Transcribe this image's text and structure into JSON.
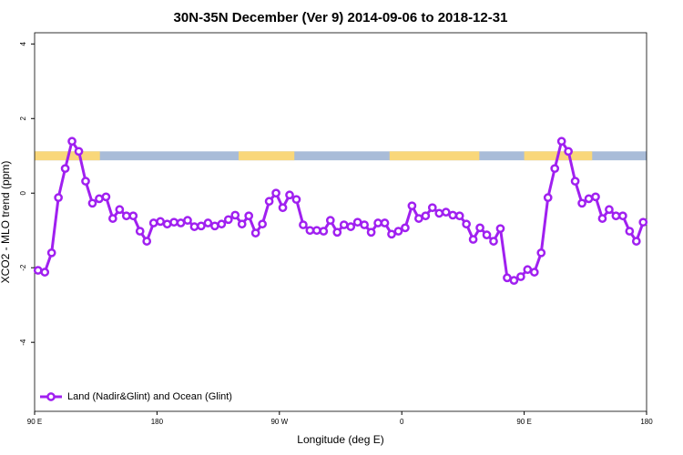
{
  "chart_data": {
    "type": "line",
    "title": "30N-35N December (Ver 9)   2014-09-06 to 2018-12-31",
    "x_label": "Longitude (deg E)",
    "y_label": "XCO2 - MLO trend (ppm)",
    "xlim": [
      90,
      540
    ],
    "xticks": [
      {
        "value": 90,
        "label": "90 E"
      },
      {
        "value": 180,
        "label": "180"
      },
      {
        "value": 270,
        "label": "90 W"
      },
      {
        "value": 360,
        "label": "0"
      },
      {
        "value": 450,
        "label": "90 E"
      },
      {
        "value": 540,
        "label": "180"
      }
    ],
    "ylim": [
      -5.85,
      4.3
    ],
    "yticks": [
      -4,
      -2,
      0,
      2,
      4
    ],
    "legend": "bottom-left",
    "surface_band": {
      "ylim": [
        0.88,
        1.12
      ],
      "ocean_color": "#a9bcd8",
      "land_color": "#f9d77a",
      "land": [
        [
          90,
          138
        ],
        [
          240,
          281
        ],
        [
          351,
          417
        ],
        [
          450,
          500
        ]
      ]
    },
    "series": [
      {
        "name": "Land (Nadir&Glint) and Ocean (Glint)",
        "color": "#a020f0",
        "x": [
          92.5,
          97.5,
          102.5,
          107.5,
          112.5,
          117.5,
          122.5,
          127.5,
          132.5,
          137.5,
          142.5,
          147.5,
          152.5,
          157.5,
          162.5,
          167.5,
          172.5,
          177.5,
          182.5,
          187.5,
          192.5,
          197.5,
          202.5,
          207.5,
          212.5,
          217.5,
          222.5,
          227.5,
          232.5,
          237.5,
          242.5,
          247.5,
          252.5,
          257.5,
          262.5,
          267.5,
          272.5,
          277.5,
          282.5,
          287.5,
          292.5,
          297.5,
          302.5,
          307.5,
          312.5,
          317.5,
          322.5,
          327.5,
          332.5,
          337.5,
          342.5,
          347.5,
          352.5,
          357.5,
          362.5,
          367.5,
          372.5,
          377.5,
          382.5,
          387.5,
          392.5,
          397.5,
          402.5,
          407.5,
          412.5,
          417.5,
          422.5,
          427.5,
          432.5,
          437.5,
          442.5,
          447.5,
          452.5,
          457.5,
          462.5,
          467.5,
          472.5,
          477.5,
          482.5,
          487.5,
          492.5,
          497.5,
          502.5,
          507.5,
          512.5,
          517.5,
          522.5,
          527.5,
          532.5,
          537.5
        ],
        "values": [
          -2.07,
          -2.12,
          -1.6,
          -0.12,
          0.66,
          1.39,
          1.12,
          0.32,
          -0.27,
          -0.15,
          -0.1,
          -0.68,
          -0.44,
          -0.61,
          -0.61,
          -1.02,
          -1.29,
          -0.8,
          -0.76,
          -0.83,
          -0.78,
          -0.8,
          -0.73,
          -0.9,
          -0.88,
          -0.8,
          -0.88,
          -0.83,
          -0.71,
          -0.59,
          -0.83,
          -0.61,
          -1.07,
          -0.83,
          -0.22,
          0,
          -0.39,
          -0.05,
          -0.17,
          -0.85,
          -1.0,
          -1.0,
          -1.02,
          -0.73,
          -1.05,
          -0.85,
          -0.9,
          -0.78,
          -0.85,
          -1.05,
          -0.8,
          -0.8,
          -1.1,
          -1.02,
          -0.93,
          -0.34,
          -0.68,
          -0.61,
          -0.39,
          -0.54,
          -0.51,
          -0.59,
          -0.61,
          -0.83,
          -1.24,
          -0.93,
          -1.12,
          -1.29,
          -0.95,
          -2.27,
          -2.34,
          -2.24,
          -2.05,
          -2.12,
          -1.6,
          -0.12,
          0.66,
          1.39,
          1.12,
          0.32,
          -0.27,
          -0.15,
          -0.1,
          -0.68,
          -0.44,
          -0.61,
          -0.61,
          -1.02,
          -1.29,
          -0.78
        ]
      }
    ]
  }
}
